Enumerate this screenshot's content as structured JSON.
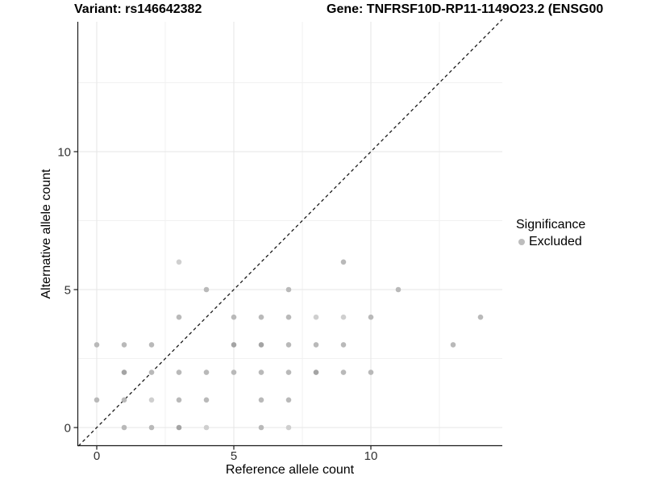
{
  "header": {
    "variant_title": "Variant: rs146642382",
    "gene_title": "Gene: TNFRSF10D-RP11-1149O23.2 (ENSG00"
  },
  "legend": {
    "title": "Significance",
    "items": [
      {
        "label": "Excluded",
        "color": "#bdbdbd"
      }
    ]
  },
  "chart_data": {
    "type": "scatter",
    "title": "",
    "xlabel": "Reference allele count",
    "ylabel": "Alternative allele count",
    "xlim": [
      -0.7,
      14.8
    ],
    "ylim": [
      -0.67,
      14.7
    ],
    "x_ticks": [
      0,
      5,
      10
    ],
    "y_ticks": [
      0,
      5,
      10
    ],
    "x_minor": [
      2.5,
      7.5,
      12.5
    ],
    "y_minor": [
      2.5,
      7.5,
      12.5
    ],
    "grid": true,
    "legend_position": "right",
    "identity_line": {
      "style": "dashed",
      "color": "#1a1a1a",
      "from": [
        -0.67,
        -0.67
      ],
      "to": [
        14.8,
        14.8
      ]
    },
    "colors": {
      "major_grid": "#e6e6e6",
      "minor_grid": "#f1f1f1",
      "axis": "#1a1a1a",
      "tick_label": "#303030",
      "point_shades": {
        "n": "#b9b9b9",
        "l": "#cfcfcf",
        "d": "#a4a4a4"
      }
    },
    "series": [
      {
        "name": "Excluded",
        "points": [
          [
            0,
            1,
            "n"
          ],
          [
            0,
            3,
            "n"
          ],
          [
            1,
            0,
            "n"
          ],
          [
            1,
            1,
            "n"
          ],
          [
            1,
            2,
            "d"
          ],
          [
            1,
            3,
            "n"
          ],
          [
            2,
            0,
            "n"
          ],
          [
            2,
            1,
            "l"
          ],
          [
            2,
            2,
            "n"
          ],
          [
            2,
            3,
            "n"
          ],
          [
            3,
            0,
            "d"
          ],
          [
            3,
            1,
            "n"
          ],
          [
            3,
            2,
            "n"
          ],
          [
            3,
            4,
            "n"
          ],
          [
            3,
            6,
            "l"
          ],
          [
            4,
            0,
            "l"
          ],
          [
            4,
            1,
            "n"
          ],
          [
            4,
            2,
            "n"
          ],
          [
            4,
            5,
            "n"
          ],
          [
            5,
            2,
            "n"
          ],
          [
            5,
            3,
            "d"
          ],
          [
            5,
            4,
            "n"
          ],
          [
            6,
            0,
            "n"
          ],
          [
            6,
            1,
            "n"
          ],
          [
            6,
            2,
            "n"
          ],
          [
            6,
            3,
            "d"
          ],
          [
            6,
            4,
            "n"
          ],
          [
            7,
            0,
            "l"
          ],
          [
            7,
            1,
            "n"
          ],
          [
            7,
            2,
            "n"
          ],
          [
            7,
            3,
            "n"
          ],
          [
            7,
            4,
            "n"
          ],
          [
            7,
            5,
            "n"
          ],
          [
            8,
            2,
            "d"
          ],
          [
            8,
            3,
            "n"
          ],
          [
            8,
            4,
            "l"
          ],
          [
            9,
            2,
            "n"
          ],
          [
            9,
            3,
            "n"
          ],
          [
            9,
            4,
            "l"
          ],
          [
            9,
            6,
            "n"
          ],
          [
            10,
            2,
            "n"
          ],
          [
            10,
            4,
            "n"
          ],
          [
            11,
            5,
            "n"
          ],
          [
            13,
            3,
            "n"
          ],
          [
            14,
            4,
            "n"
          ]
        ]
      }
    ]
  }
}
